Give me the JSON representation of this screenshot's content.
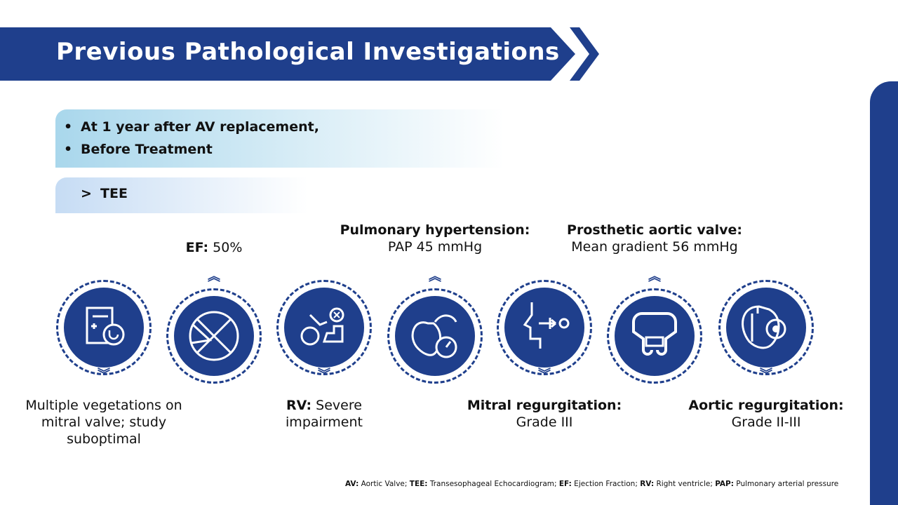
{
  "header": {
    "title": "Previous Pathological Investigations"
  },
  "context": {
    "bullets": [
      "At 1 year after AV replacement,",
      "Before Treatment"
    ],
    "section_marker": ">",
    "section": "TEE"
  },
  "findings": [
    {
      "icon": "medical-record-stethoscope-icon",
      "label": "",
      "value": "Multiple vegetations on mitral valve; study suboptimal"
    },
    {
      "icon": "pie-chart-icon",
      "label": "EF:",
      "value": "50%"
    },
    {
      "icon": "rehabilitation-icon",
      "label": "RV:",
      "value": "Severe impairment"
    },
    {
      "icon": "heart-gauge-icon",
      "label": "Pulmonary hypertension:",
      "value": "PAP 45 mmHg"
    },
    {
      "icon": "face-regurgitation-icon",
      "label": "Mitral regurgitation:",
      "value": "Grade III"
    },
    {
      "icon": "prosthetic-valve-icon",
      "label": "Prosthetic aortic valve:",
      "value": "Mean gradient 56 mmHg"
    },
    {
      "icon": "heart-virus-icon",
      "label": "Aortic regurgitation:",
      "value": "Grade II-III"
    }
  ],
  "footnote": [
    {
      "abbr": "AV:",
      "def": " Aortic Valve; "
    },
    {
      "abbr": "TEE:",
      "def": " Transesophageal Echocardiogram; "
    },
    {
      "abbr": "EF:",
      "def": " Ejection Fraction; "
    },
    {
      "abbr": "RV:",
      "def": " Right ventricle; "
    },
    {
      "abbr": "PAP:",
      "def": " Pulmonary arterial pressure"
    }
  ],
  "colors": {
    "primary": "#1f3f8c",
    "bullet_box": "#a9d7ec",
    "section_box": "#c6dcf4"
  }
}
